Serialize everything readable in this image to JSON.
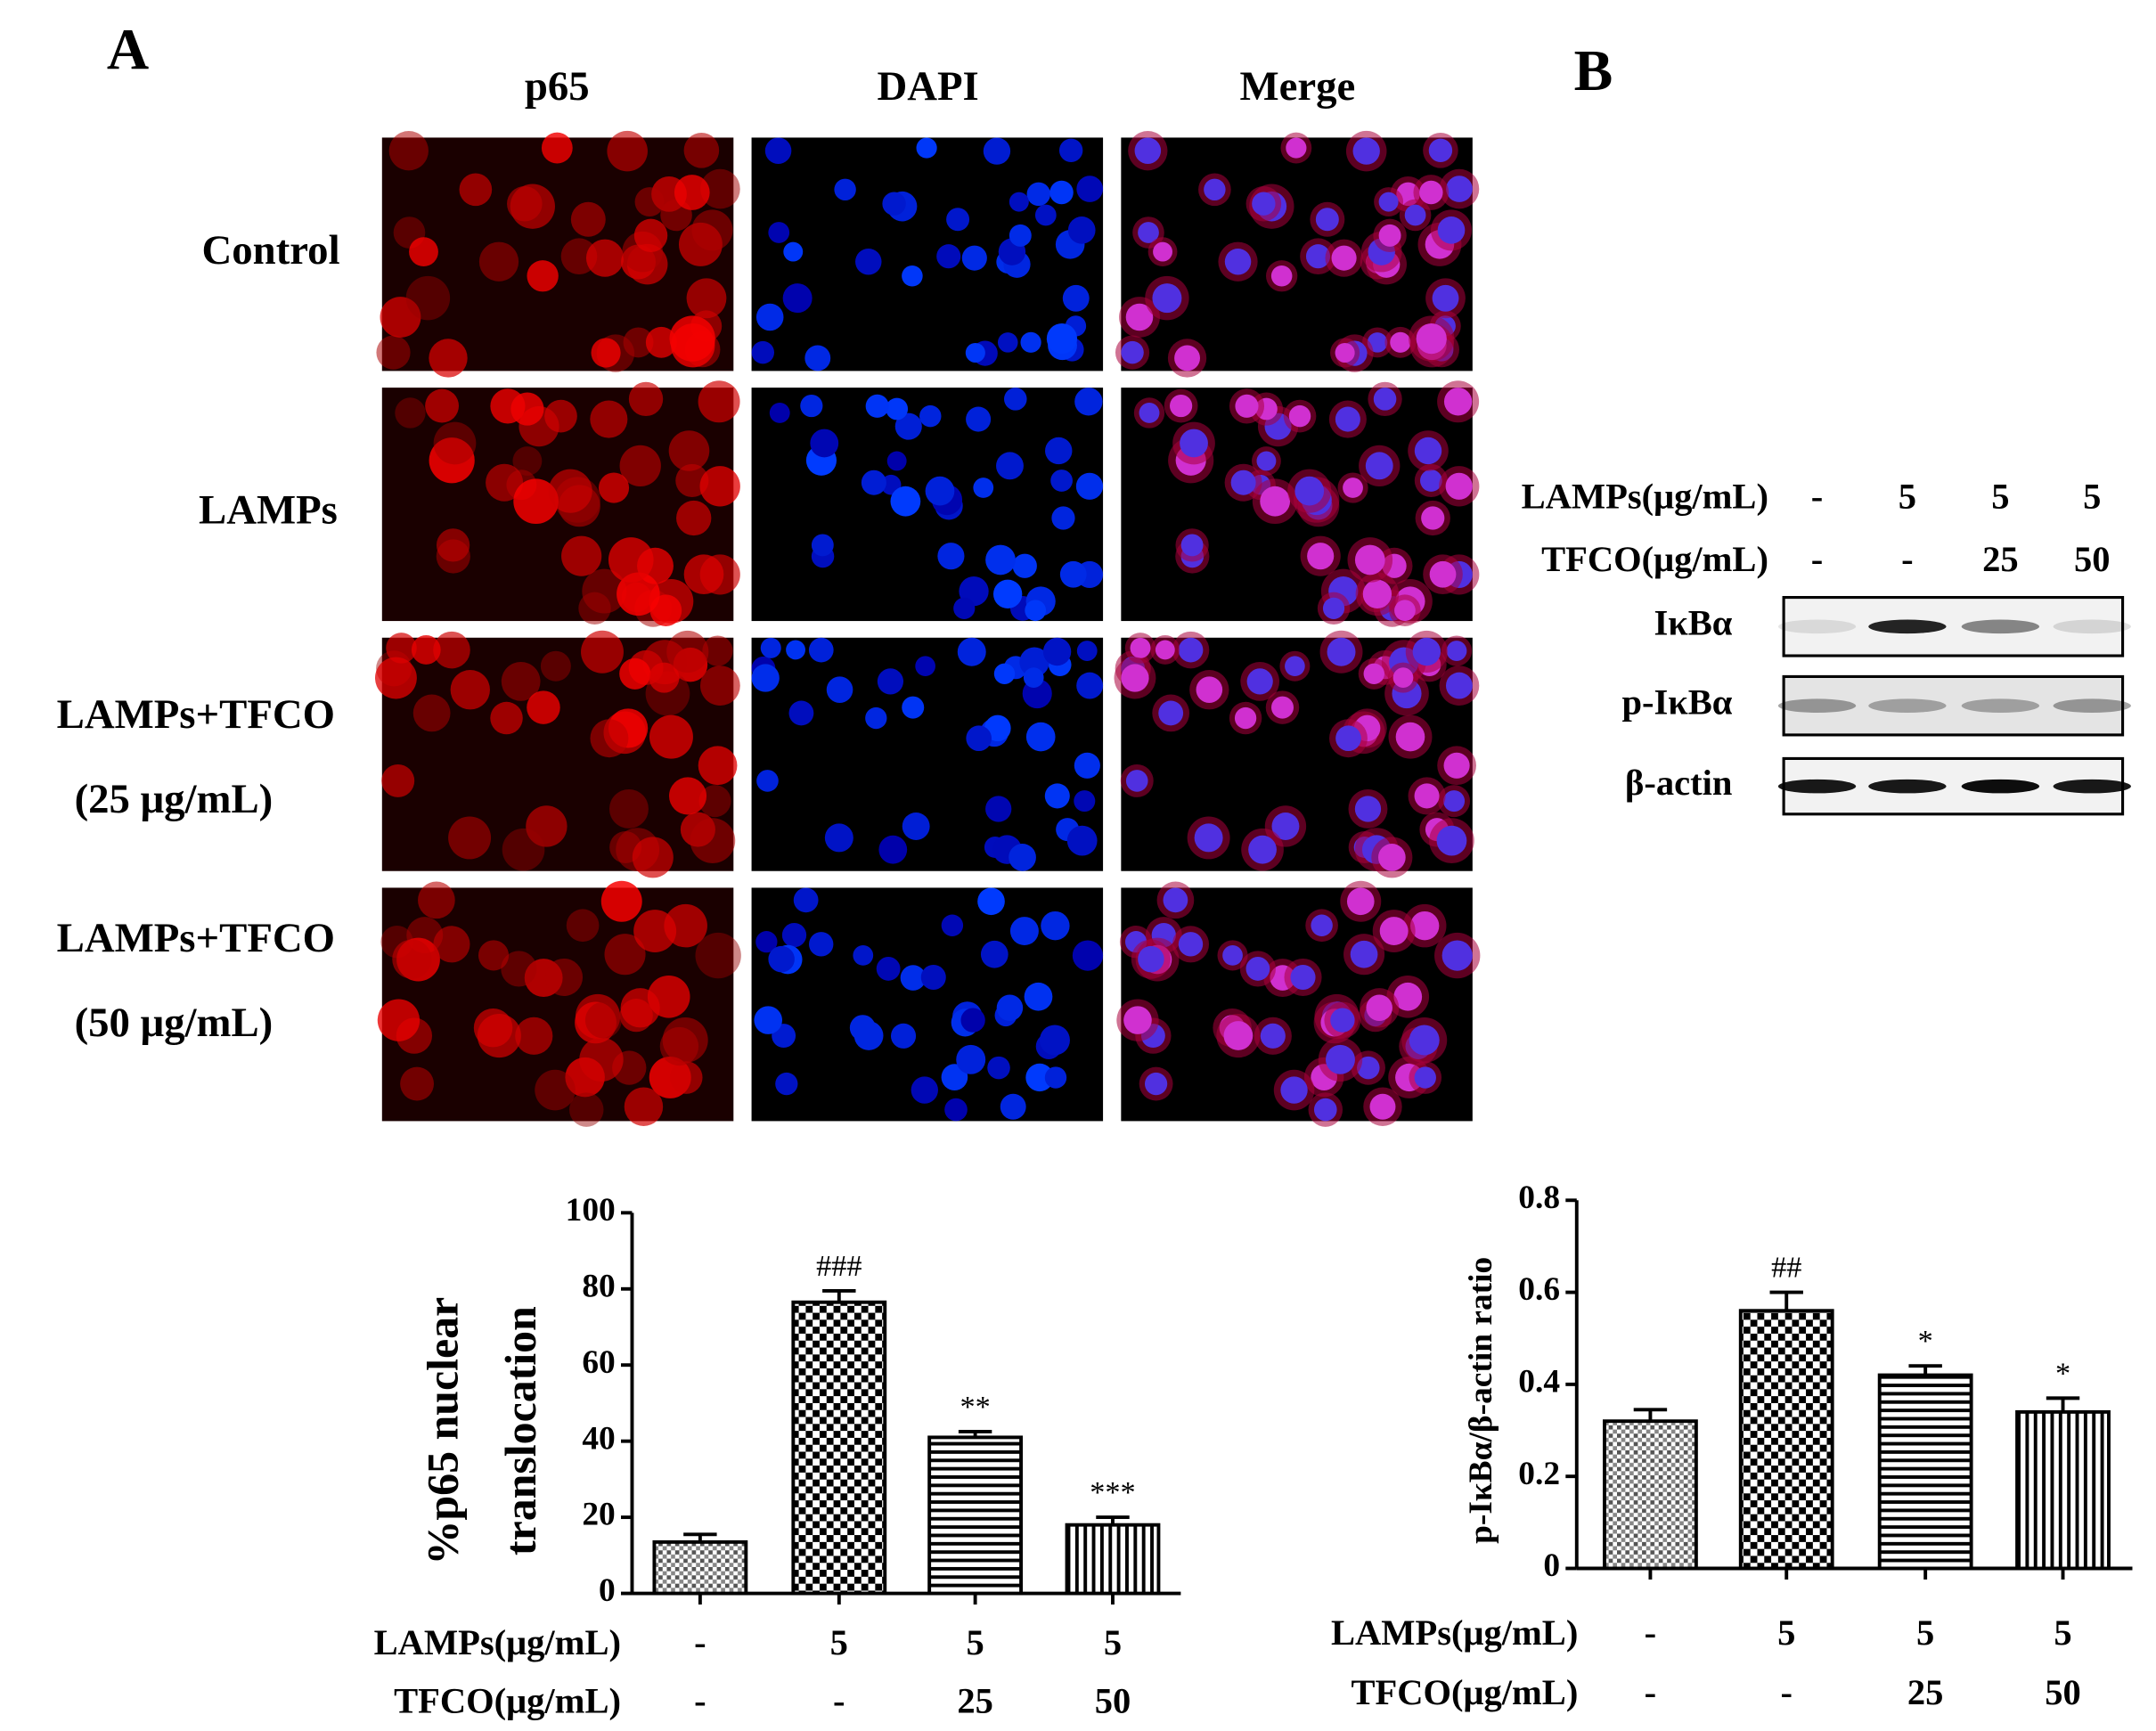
{
  "panel_labels": [
    "A",
    "B"
  ],
  "microscopy": {
    "columns": [
      "p65",
      "DAPI",
      "Merge"
    ],
    "rows": [
      [
        "Control"
      ],
      [
        "LAMPs"
      ],
      [
        "LAMPs+TFCO",
        "(25 μg/mL)"
      ],
      [
        "LAMPs+TFCO",
        "(50 μg/mL)"
      ]
    ]
  },
  "blot": {
    "treatments": [
      {
        "label": "LAMPs(μg/mL)",
        "values": [
          "-",
          "5",
          "5",
          "5"
        ]
      },
      {
        "label": "TFCO(μg/mL)",
        "values": [
          "-",
          "-",
          "25",
          "50"
        ]
      }
    ],
    "bands": [
      "IκBα",
      "p-IκBα",
      "β-actin"
    ]
  },
  "chart_data": [
    {
      "type": "bar",
      "y_label": [
        "%p65 nuclear",
        "translocation"
      ],
      "values": [
        13.5,
        76.5,
        41,
        18
      ],
      "errors": [
        2,
        3,
        1.5,
        2
      ],
      "annotations": [
        null,
        "###",
        "**",
        "***"
      ],
      "treatments": [
        {
          "label": "LAMPs(μg/mL)",
          "values": [
            "-",
            "5",
            "5",
            "5"
          ]
        },
        {
          "label": "TFCO(μg/mL)",
          "values": [
            "-",
            "-",
            "25",
            "50"
          ]
        }
      ],
      "patterns": [
        "dots",
        "checker",
        "hlines",
        "vlines"
      ],
      "color": "#000000",
      "ylim": [
        0,
        100
      ],
      "yticks": [
        0,
        20,
        40,
        60,
        80,
        100
      ]
    },
    {
      "type": "bar",
      "y_label": [
        "p-IκBα/β-actin ratio"
      ],
      "values": [
        0.32,
        0.56,
        0.42,
        0.34
      ],
      "errors": [
        0.025,
        0.04,
        0.02,
        0.03
      ],
      "annotations": [
        null,
        "##",
        "*",
        "*"
      ],
      "treatments": [
        {
          "label": "LAMPs(μg/mL)",
          "values": [
            "-",
            "5",
            "5",
            "5"
          ]
        },
        {
          "label": "TFCO(μg/mL)",
          "values": [
            "-",
            "-",
            "25",
            "50"
          ]
        }
      ],
      "patterns": [
        "dots",
        "checker",
        "hlines",
        "vlines"
      ],
      "color": "#000000",
      "ylim": [
        0,
        0.8
      ],
      "yticks": [
        0,
        0.2,
        0.4,
        0.6,
        0.8
      ]
    }
  ]
}
